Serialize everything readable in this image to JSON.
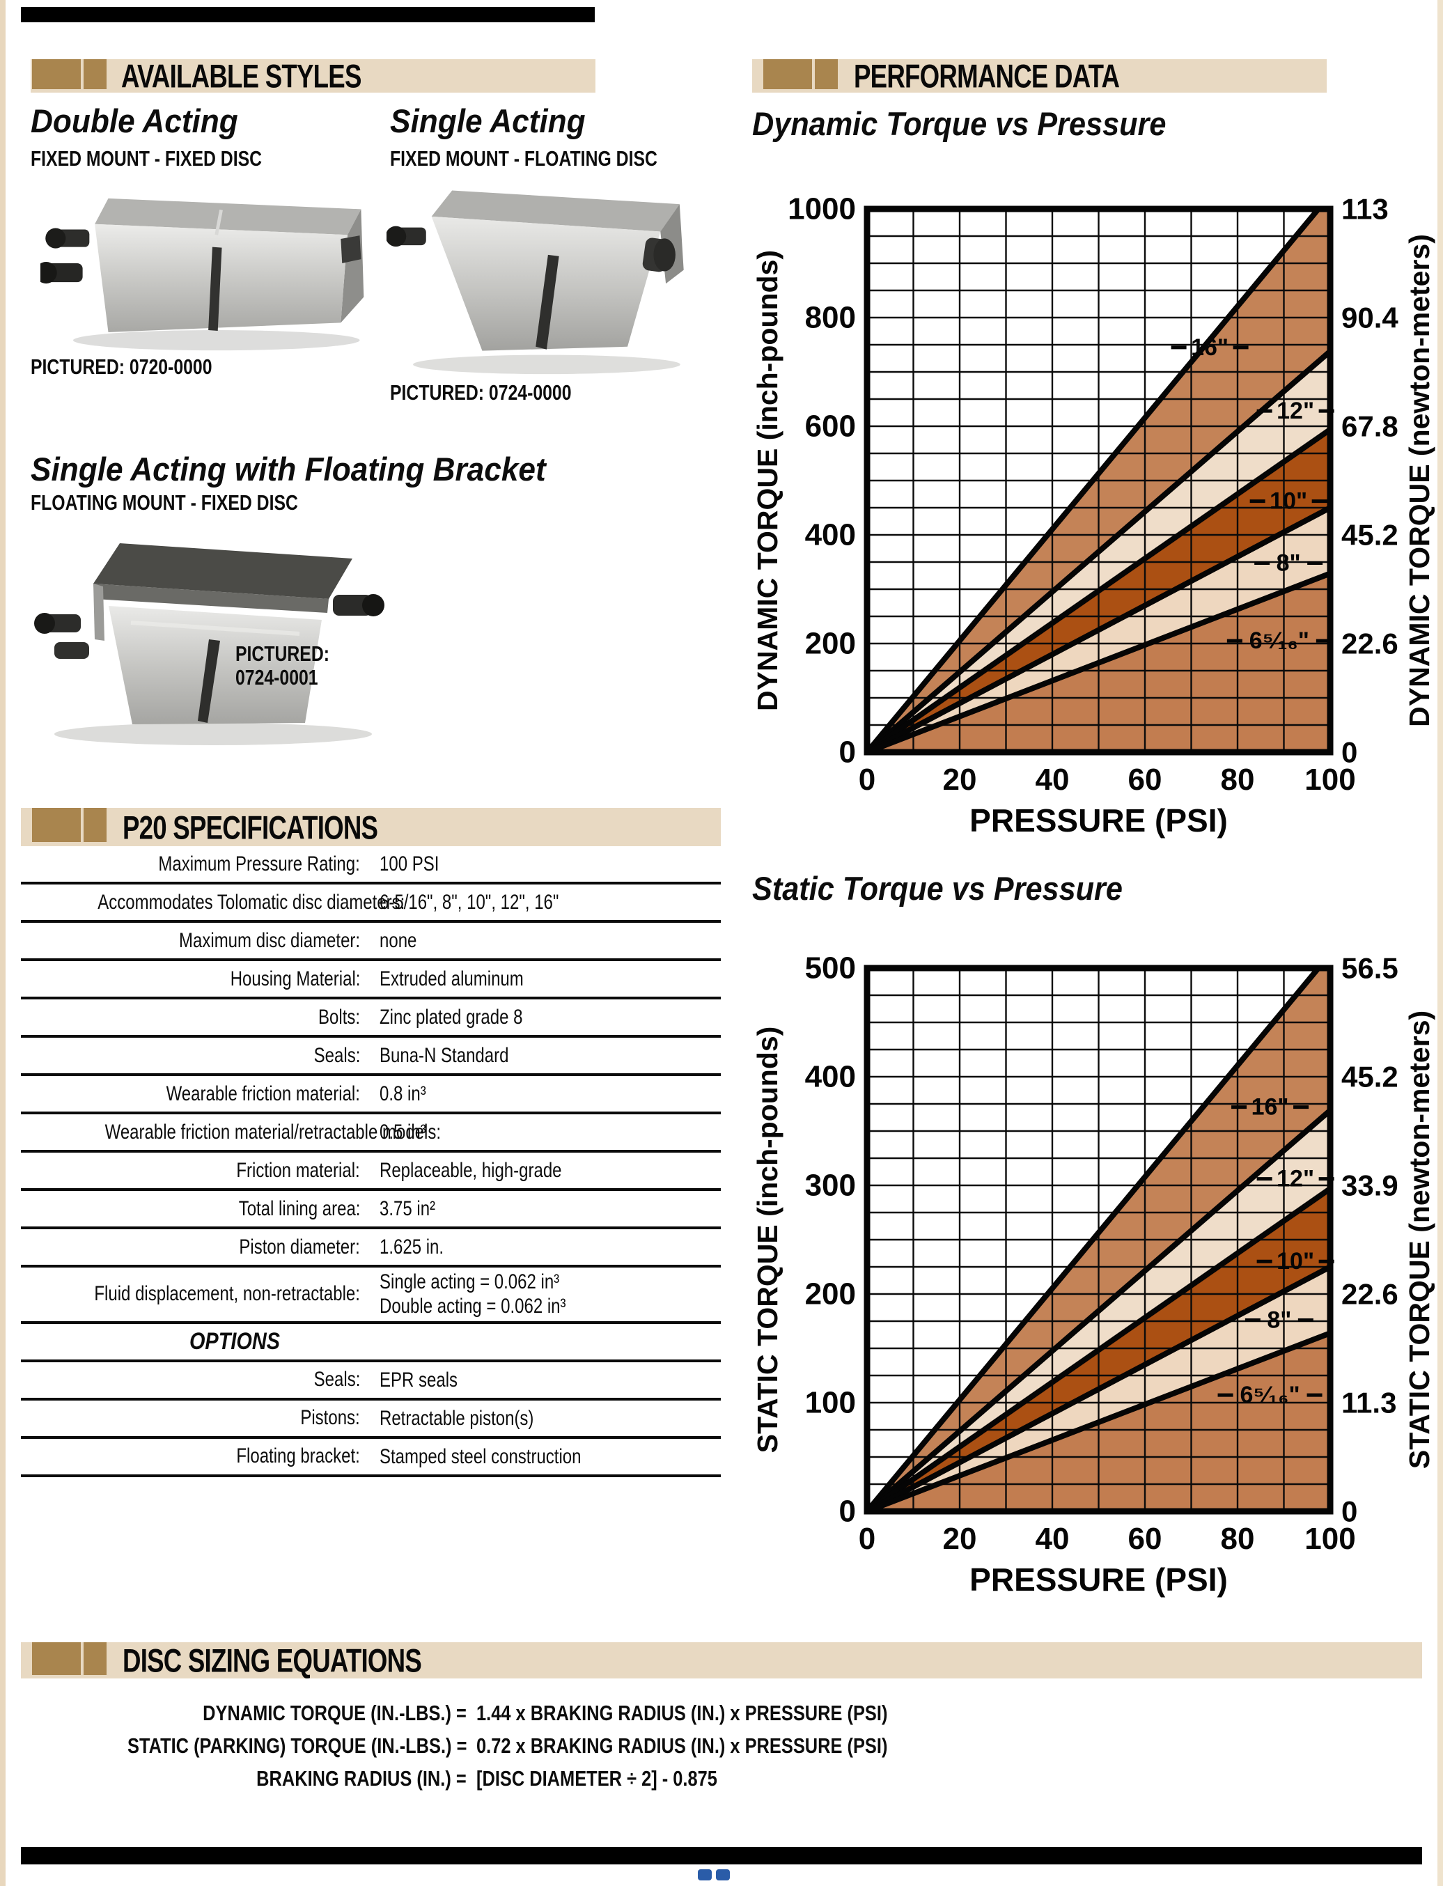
{
  "palette": {
    "header_bg": "#e8d9c2",
    "header_square_brown": "#a9854e",
    "rule_bar_black": "#000000",
    "footer_mark_blue": "#2a5ca8",
    "band_medium": "#c48357",
    "band_pale": "#efddc9",
    "band_dark_rust": "#ab5013",
    "band_pale_warm": "#eed7bf",
    "band_bottom_copper": "#c27d50"
  },
  "available_styles": {
    "header": "AVAILABLE STYLES",
    "products": [
      {
        "title": "Double Acting",
        "subtitle": "FIXED MOUNT - FIXED DISC",
        "caption": "PICTURED:  0720-0000"
      },
      {
        "title": "Single Acting",
        "subtitle": "FIXED MOUNT - FLOATING DISC",
        "caption": "PICTURED: 0724-0000"
      },
      {
        "title": "Single Acting with Floating Bracket",
        "subtitle": "FLOATING MOUNT - FIXED DISC",
        "caption": "PICTURED:\n0724-0001"
      }
    ]
  },
  "specifications": {
    "header": "P20 SPECIFICATIONS",
    "rows": [
      {
        "label": "Maximum Pressure Rating:",
        "value": "100 PSI"
      },
      {
        "label": "Accommodates Tolomatic disc diameters:",
        "value": "6-5/16\",  8\",  10\", 12\", 16\""
      },
      {
        "label": "Maximum disc diameter:",
        "value": "none"
      },
      {
        "label": "Housing Material:",
        "value": "Extruded aluminum"
      },
      {
        "label": "Bolts:",
        "value": "Zinc plated grade 8"
      },
      {
        "label": "Seals:",
        "value": "Buna-N Standard"
      },
      {
        "label": "Wearable friction material:",
        "value": "0.8 in³"
      },
      {
        "label": "Wearable friction material/retractable models:",
        "value": "0.5 in³"
      },
      {
        "label": "Friction material:",
        "value": "Replaceable, high-grade"
      },
      {
        "label": "Total lining area:",
        "value": "3.75 in²"
      },
      {
        "label": "Piston diameter:",
        "value": "1.625 in."
      },
      {
        "label": "Fluid displacement, non-retractable:",
        "value": "Single acting = 0.062 in³\nDouble acting = 0.062 in³"
      }
    ],
    "options_header": "OPTIONS",
    "options_rows": [
      {
        "label": "Seals:",
        "value": "EPR seals"
      },
      {
        "label": "Pistons:",
        "value": "Retractable piston(s)"
      },
      {
        "label": "Floating bracket:",
        "value": "Stamped steel construction"
      }
    ]
  },
  "performance": {
    "header": "PERFORMANCE DATA"
  },
  "chart_data": [
    {
      "type": "area",
      "title": "Dynamic Torque vs Pressure",
      "xlabel": "PRESSURE (PSI)",
      "ylabel_left": "DYNAMIC TORQUE (inch-pounds)",
      "ylabel_right": "DYNAMIC TORQUE (newton-meters)",
      "xlim": [
        0,
        100
      ],
      "ylim": [
        0,
        1000
      ],
      "x_ticks": [
        0,
        20,
        40,
        60,
        80,
        100
      ],
      "x_tick_labels": [
        "0",
        "20",
        "40",
        "60",
        "80",
        "100"
      ],
      "x_minor_step": 10,
      "y_ticks": [
        0,
        200,
        400,
        600,
        800,
        1000
      ],
      "y_tick_labels_left": [
        "0",
        "200",
        "400",
        "600",
        "800",
        "1000"
      ],
      "y_tick_labels_right": [
        "0",
        "22.6",
        "45.2",
        "67.8",
        "90.4",
        "113"
      ],
      "y_minor_step": 50,
      "grid": true,
      "lines_through_origin": true,
      "series": [
        {
          "name": "16\"",
          "label": "16\"",
          "torque_at_100psi": 1026,
          "label_pos": {
            "psi": 74,
            "torque": 745
          }
        },
        {
          "name": "12\"",
          "label": "12\"",
          "torque_at_100psi": 738,
          "label_pos": {
            "psi": 92.5,
            "torque": 628
          }
        },
        {
          "name": "10\"",
          "label": "10\"",
          "torque_at_100psi": 594,
          "label_pos": {
            "psi": 91,
            "torque": 462
          }
        },
        {
          "name": "8\"",
          "label": "8\"",
          "torque_at_100psi": 450,
          "label_pos": {
            "psi": 91,
            "torque": 348
          }
        },
        {
          "name": "6-5/16\"",
          "label": "6⁵⁄₁₆\"",
          "torque_at_100psi": 329,
          "label_pos": {
            "psi": 89,
            "torque": 205
          }
        }
      ],
      "band_fills": [
        "#c48357",
        "#efddc9",
        "#ab5013",
        "#eed7bf"
      ],
      "below_fill": "#c27d50"
    },
    {
      "type": "area",
      "title": "Static Torque vs Pressure",
      "xlabel": "PRESSURE (PSI)",
      "ylabel_left": "STATIC TORQUE (inch-pounds)",
      "ylabel_right": "STATIC TORQUE (newton-meters)",
      "xlim": [
        0,
        100
      ],
      "ylim": [
        0,
        500
      ],
      "x_ticks": [
        0,
        20,
        40,
        60,
        80,
        100
      ],
      "x_tick_labels": [
        "0",
        "20",
        "40",
        "60",
        "80",
        "100"
      ],
      "x_minor_step": 10,
      "y_ticks": [
        0,
        100,
        200,
        300,
        400,
        500
      ],
      "y_tick_labels_left": [
        "0",
        "100",
        "200",
        "300",
        "400",
        "500"
      ],
      "y_tick_labels_right": [
        "0",
        "11.3",
        "22.6",
        "33.9",
        "45.2",
        "56.5"
      ],
      "y_minor_step": 25,
      "grid": true,
      "lines_through_origin": true,
      "series": [
        {
          "name": "16\"",
          "label": "16\"",
          "torque_at_100psi": 513,
          "label_pos": {
            "psi": 87,
            "torque": 372
          }
        },
        {
          "name": "12\"",
          "label": "12\"",
          "torque_at_100psi": 369,
          "label_pos": {
            "psi": 92.5,
            "torque": 306
          }
        },
        {
          "name": "10\"",
          "label": "10\"",
          "torque_at_100psi": 297,
          "label_pos": {
            "psi": 92.5,
            "torque": 230
          }
        },
        {
          "name": "8\"",
          "label": "8\"",
          "torque_at_100psi": 225,
          "label_pos": {
            "psi": 89,
            "torque": 176
          }
        },
        {
          "name": "6-5/16\"",
          "label": "6⁵⁄₁₆\"",
          "torque_at_100psi": 164,
          "label_pos": {
            "psi": 87,
            "torque": 107
          }
        }
      ],
      "band_fills": [
        "#c48357",
        "#efddc9",
        "#ab5013",
        "#eed7bf"
      ],
      "below_fill": "#c27d50"
    }
  ],
  "disc_sizing": {
    "header": "DISC SIZING EQUATIONS",
    "equations": [
      {
        "lhs": "DYNAMIC TORQUE (IN.-LBS.) =",
        "rhs": "1.44 x BRAKING RADIUS (IN.) x PRESSURE (PSI)"
      },
      {
        "lhs": "STATIC (PARKING) TORQUE (IN.-LBS.) =",
        "rhs": "0.72 x BRAKING RADIUS (IN.) x PRESSURE (PSI)"
      },
      {
        "lhs": "BRAKING RADIUS (IN.) =",
        "rhs": "[DISC DIAMETER ÷ 2] - 0.875"
      }
    ]
  }
}
